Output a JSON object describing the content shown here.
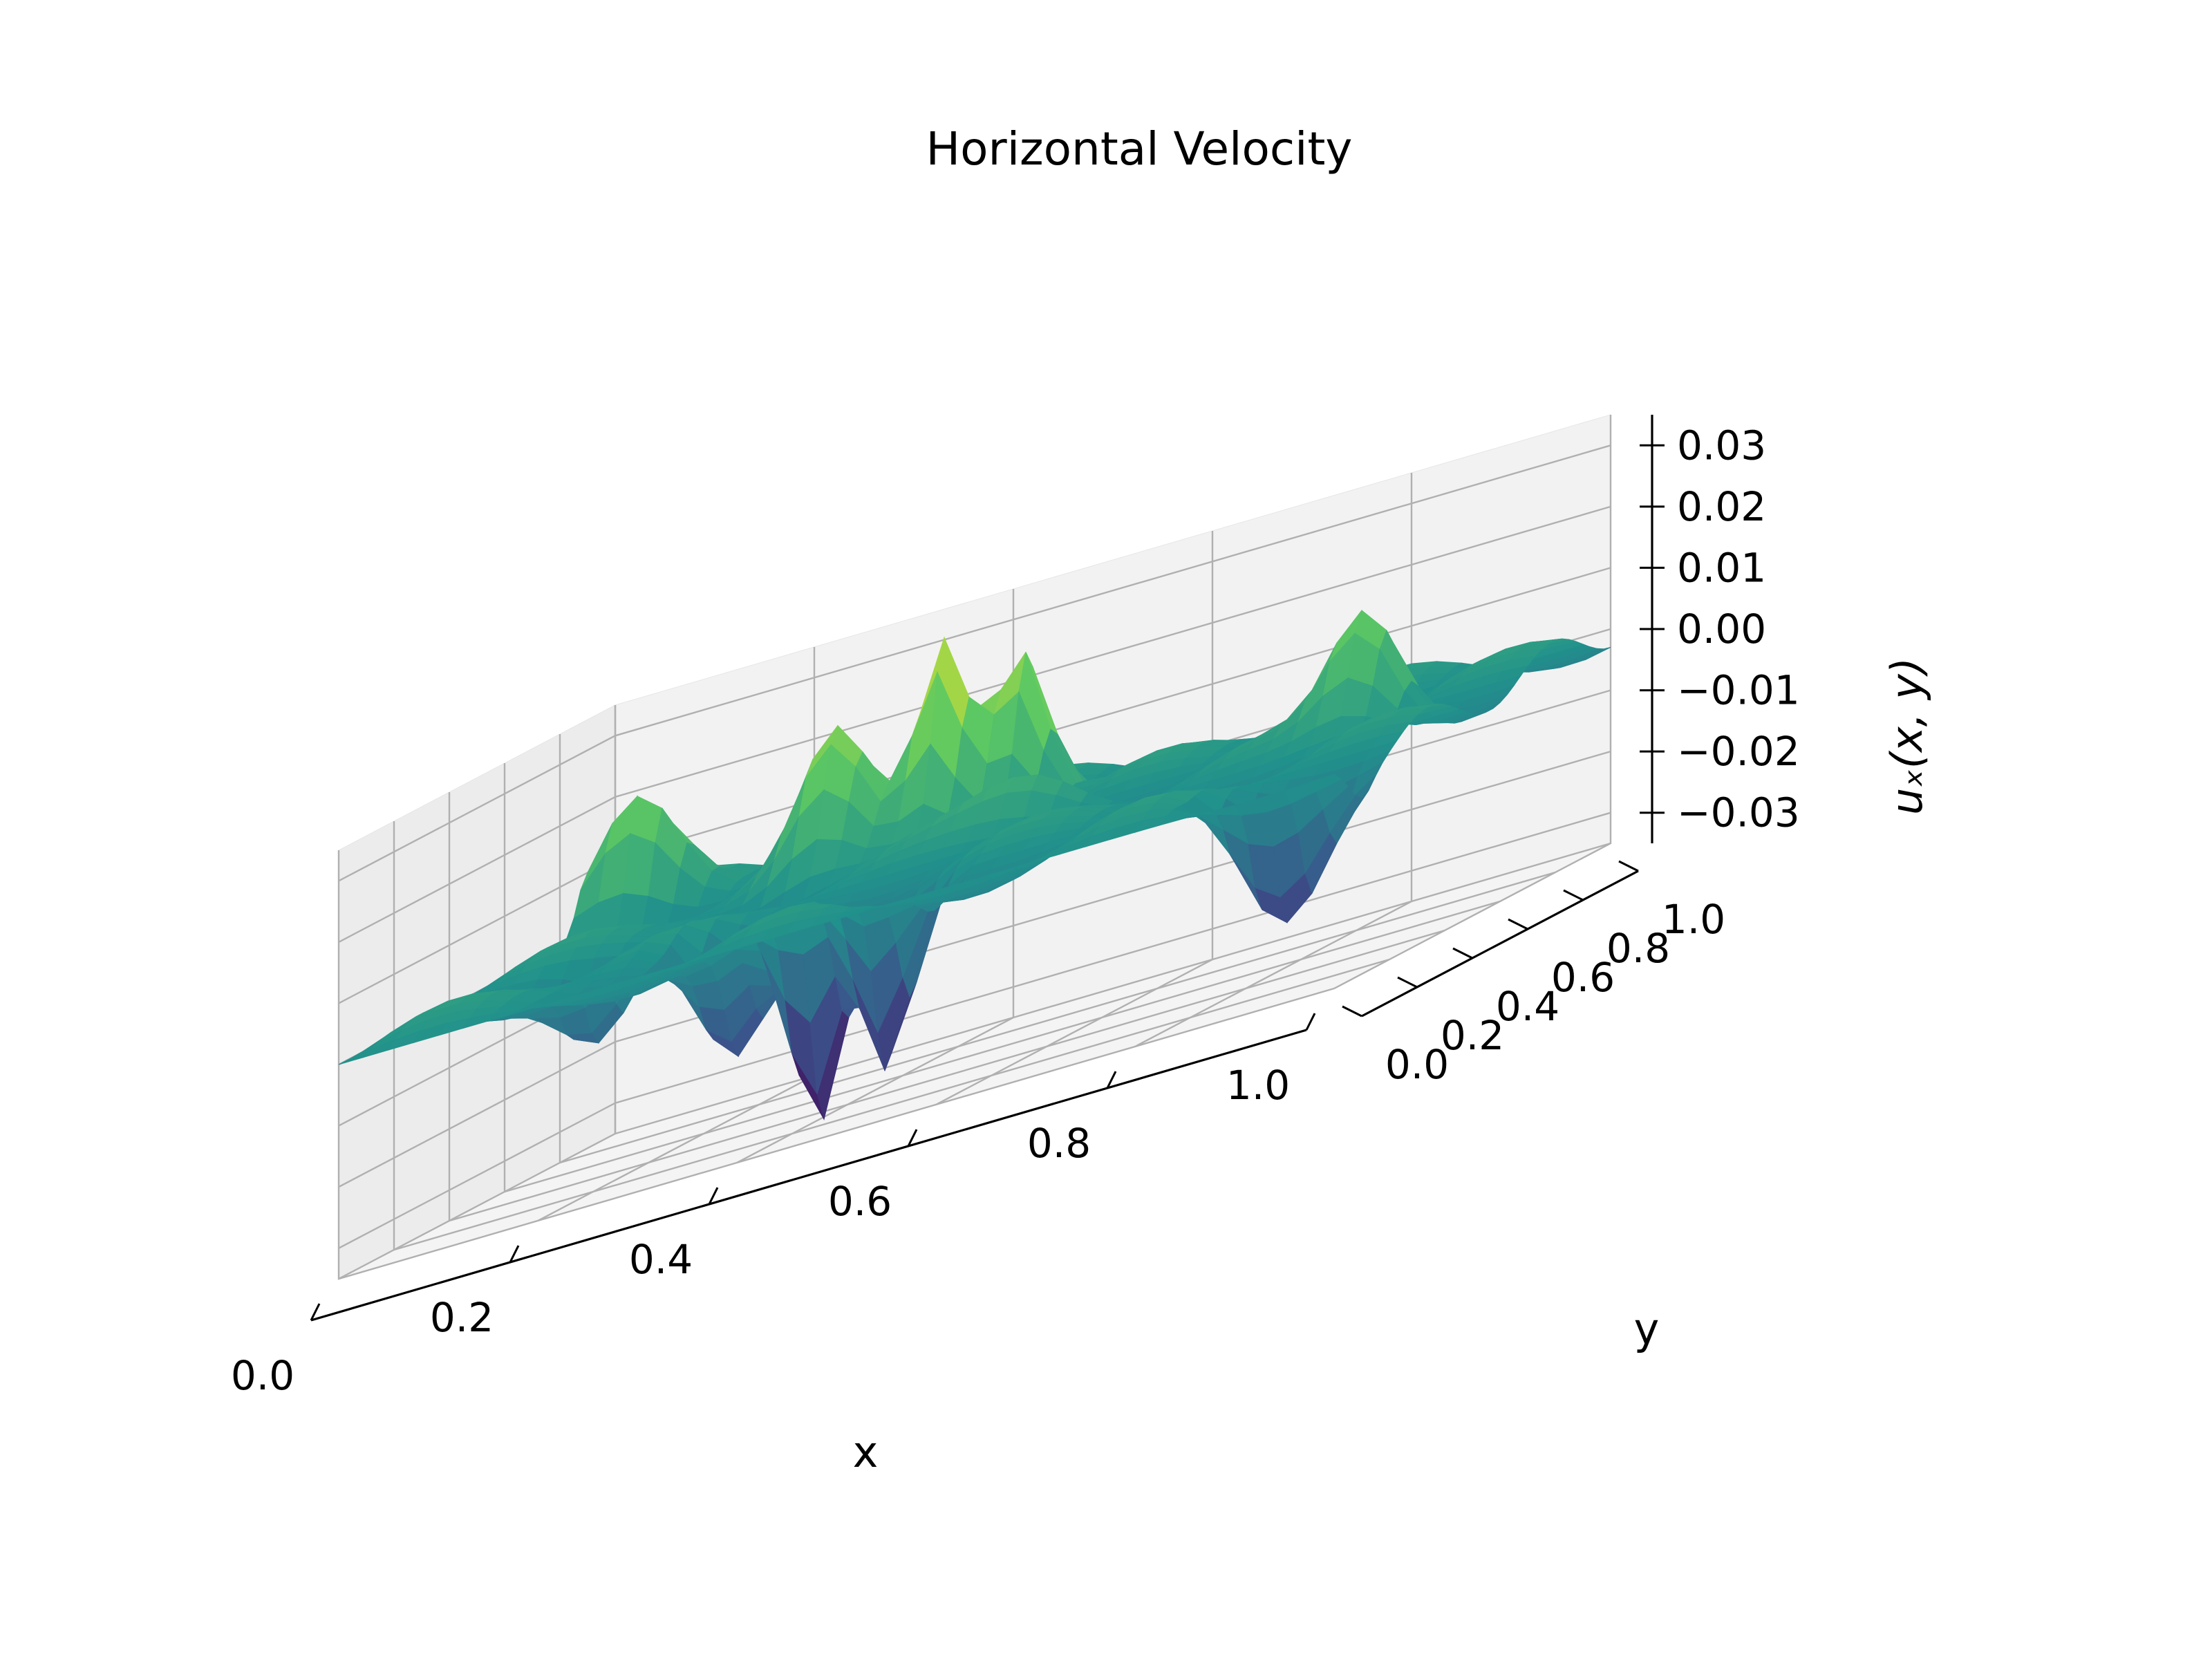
{
  "chart_data": {
    "type": "surface",
    "title": "Horizontal Velocity",
    "xlabel": "x",
    "ylabel": "y",
    "zlabel": "uₓ(x, y)",
    "xlim": [
      0,
      1
    ],
    "ylim": [
      0,
      1
    ],
    "zlim": [
      -0.035,
      0.035
    ],
    "x_ticks": [
      "0.0",
      "0.2",
      "0.4",
      "0.6",
      "0.8",
      "1.0"
    ],
    "y_ticks": [
      "0.0",
      "0.2",
      "0.4",
      "0.6",
      "0.8",
      "1.0"
    ],
    "z_ticks": [
      "−0.03",
      "−0.02",
      "−0.01",
      "0.00",
      "0.01",
      "0.02",
      "0.03"
    ],
    "z_tick_values": [
      -0.03,
      -0.02,
      -0.01,
      0.0,
      0.01,
      0.02,
      0.03
    ],
    "colormap": "viridis",
    "colormap_colors": [
      "#440154",
      "#3b528b",
      "#21918c",
      "#5ec962",
      "#fde725"
    ],
    "grid": true,
    "pane_color": "#f2f2f2",
    "surface_extrema": {
      "max": 0.035,
      "min": -0.035,
      "max_near": [
        0.4,
        0.75
      ],
      "min_near": [
        0.42,
        0.22
      ]
    }
  }
}
